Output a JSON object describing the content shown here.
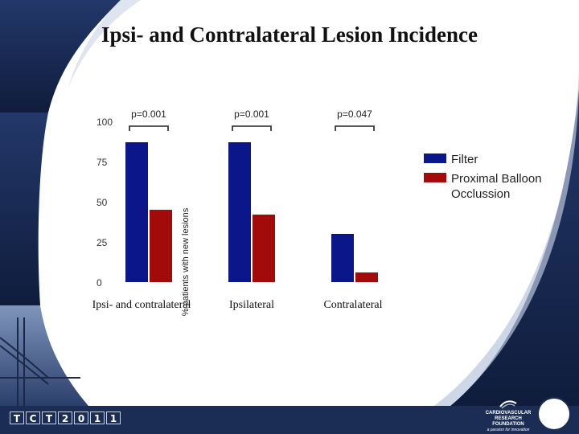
{
  "slide": {
    "title": "Ipsi- and Contralateral Lesion Incidence",
    "footer_logo": [
      "T",
      "C",
      "T",
      "2",
      "0",
      "1",
      "1"
    ],
    "foundation_name": "CARDIOVASCULAR RESEARCH FOUNDATION",
    "foundation_tagline": "a passion for innovation",
    "colors": {
      "navy": "#1b2d55",
      "filter": "#0a168a",
      "balloon": "#a30a0a"
    }
  },
  "chart_data": {
    "type": "bar",
    "title": "",
    "ylabel": "% patients with new lesions",
    "xlabel": "",
    "categories": [
      "Ipsi- and contralateral",
      "Ipsilateral",
      "Contralateral"
    ],
    "series": [
      {
        "name": "Filter",
        "color": "#0a168a",
        "values": [
          87,
          87,
          30
        ]
      },
      {
        "name": "Proximal Balloon Occlussion",
        "color": "#a30a0a",
        "values": [
          45,
          42,
          6
        ]
      }
    ],
    "yticks": [
      "0",
      "25",
      "50",
      "75",
      "100"
    ],
    "ylim": [
      0,
      100
    ],
    "pvalues": [
      "p=0.001",
      "p=0.001",
      "p=0.047"
    ],
    "legend_position": "right"
  }
}
